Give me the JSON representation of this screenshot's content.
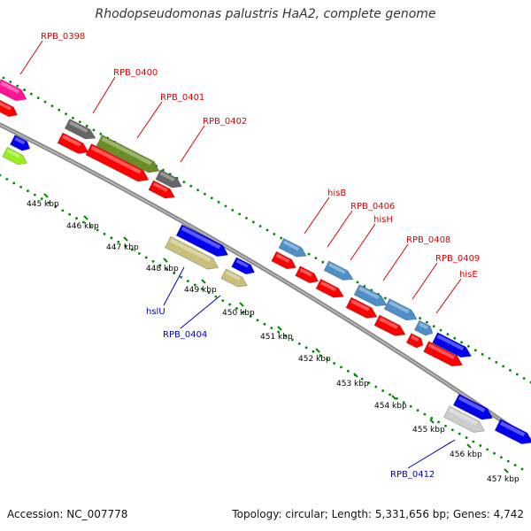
{
  "title": "Rhodopseudomonas palustris HaA2, complete genome",
  "footer": {
    "accession": "Accession: NC_007778",
    "genome_info": "Topology: circular; Length: 5,331,656 bp; Genes: 4,742"
  },
  "colors": {
    "label_red": "#dd0000",
    "label_blue": "#0000bb",
    "backbone": "#888888",
    "tick_green": "#008800",
    "red": "#ff0000",
    "blue": "#0000ee",
    "steelblue": "#4f8fc8",
    "olive": "#6b8e23",
    "gray": "#666666",
    "khaki": "#c8c07a",
    "magenta": "#ff1493",
    "lime": "#99ee22",
    "lightgray": "#cccccc"
  },
  "kbp_labels": [
    "445 kbp",
    "446 kbp",
    "447 kbp",
    "448 kbp",
    "449 kbp",
    "450 kbp",
    "451 kbp",
    "452 kbp",
    "453 kbp",
    "454 kbp",
    "455 kbp",
    "456 kbp",
    "457 kbp"
  ],
  "gene_labels": [
    {
      "text": "RPB_0398",
      "color": "red"
    },
    {
      "text": "RPB_0400",
      "color": "red"
    },
    {
      "text": "RPB_0401",
      "color": "red"
    },
    {
      "text": "RPB_0402",
      "color": "red"
    },
    {
      "text": "hisB",
      "color": "red"
    },
    {
      "text": "RPB_0406",
      "color": "red"
    },
    {
      "text": "hisH",
      "color": "red"
    },
    {
      "text": "RPB_0408",
      "color": "red"
    },
    {
      "text": "RPB_0409",
      "color": "red"
    },
    {
      "text": "hisE",
      "color": "red"
    },
    {
      "text": "hslU",
      "color": "blue"
    },
    {
      "text": "RPB_0404",
      "color": "blue"
    },
    {
      "text": "RPB_0412",
      "color": "blue"
    }
  ],
  "features": [
    {
      "name": "RPB_0398",
      "color": "magenta",
      "dir": 1
    },
    {
      "name": "",
      "color": "red",
      "dir": 1
    },
    {
      "name": "",
      "color": "blue",
      "dir": 1
    },
    {
      "name": "",
      "color": "lime",
      "dir": 1
    },
    {
      "name": "RPB_0400",
      "color": "gray",
      "dir": 1
    },
    {
      "name": "RPB_0401",
      "color": "olive",
      "dir": 1
    },
    {
      "name": "RPB_0402",
      "color": "gray",
      "dir": 1
    },
    {
      "name": "",
      "color": "red",
      "dir": 1
    },
    {
      "name": "",
      "color": "red",
      "dir": 1
    },
    {
      "name": "",
      "color": "red",
      "dir": 1
    },
    {
      "name": "",
      "color": "blue",
      "dir": 1
    },
    {
      "name": "hslU",
      "color": "khaki",
      "dir": 1
    },
    {
      "name": "",
      "color": "blue",
      "dir": 1
    },
    {
      "name": "RPB_0404",
      "color": "khaki",
      "dir": 1
    },
    {
      "name": "hisB",
      "color": "steelblue",
      "dir": 1
    },
    {
      "name": "RPB_0406",
      "color": "steelblue",
      "dir": 1
    },
    {
      "name": "hisH",
      "color": "steelblue",
      "dir": 1
    },
    {
      "name": "RPB_0408",
      "color": "steelblue",
      "dir": 1
    },
    {
      "name": "RPB_0409",
      "color": "steelblue",
      "dir": 1
    },
    {
      "name": "hisE",
      "color": "blue",
      "dir": 1
    },
    {
      "name": "",
      "color": "red",
      "dir": 1
    },
    {
      "name": "",
      "color": "red",
      "dir": 1
    },
    {
      "name": "",
      "color": "red",
      "dir": 1
    },
    {
      "name": "",
      "color": "red",
      "dir": 1
    },
    {
      "name": "",
      "color": "red",
      "dir": 1
    },
    {
      "name": "",
      "color": "red",
      "dir": 1
    },
    {
      "name": "",
      "color": "red",
      "dir": 1
    },
    {
      "name": "",
      "color": "blue",
      "dir": 1
    },
    {
      "name": "RPB_0412",
      "color": "lightgray",
      "dir": 1
    },
    {
      "name": "",
      "color": "blue",
      "dir": 1
    }
  ]
}
